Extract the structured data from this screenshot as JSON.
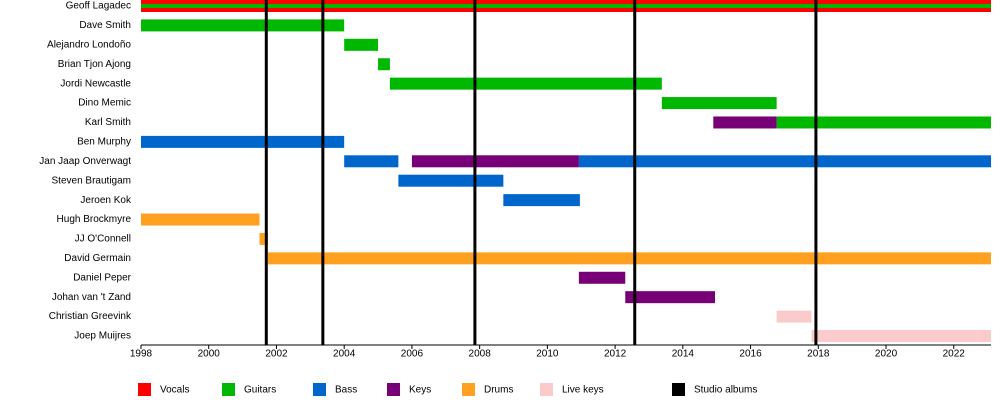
{
  "chart_data": {
    "type": "timeline",
    "categories": [
      "Geoff Lagadec",
      "Dave Smith",
      "Alejandro Londoño",
      "Brian Tjon Ajong",
      "Jordi Newcastle",
      "Dino Memic",
      "Karl Smith",
      "Ben Murphy",
      "Jan Jaap Onverwagt",
      "Steven Brautigam",
      "Jeroen Kok",
      "Hugh Brockmyre",
      "JJ O'Connell",
      "David Germain",
      "Daniel Peper",
      "Johan van 't Zand",
      "Christian Greevink",
      "Joep Muijres"
    ],
    "series": [
      {
        "name": "Vocals",
        "color": "#ff0000",
        "values": [
          [
            [
              1998,
              2023.1
            ]
          ],
          null,
          null,
          null,
          null,
          null,
          null,
          null,
          null,
          null,
          null,
          null,
          null,
          null,
          null,
          null,
          null,
          null
        ]
      },
      {
        "name": "Guitars",
        "color": "#00b800",
        "values": [
          [
            [
              1998,
              2023.1
            ]
          ],
          [
            [
              1998,
              2004
            ]
          ],
          [
            [
              2004,
              2005
            ]
          ],
          [
            [
              2005,
              2005.35
            ]
          ],
          [
            [
              2005.35,
              2013.38
            ]
          ],
          [
            [
              2013.38,
              2016.77
            ]
          ],
          [
            [
              2016.77,
              2023.1
            ]
          ],
          null,
          null,
          null,
          null,
          null,
          null,
          null,
          null,
          null,
          null,
          null
        ]
      },
      {
        "name": "Bass",
        "color": "#0066cc",
        "values": [
          null,
          null,
          null,
          null,
          null,
          null,
          null,
          [
            [
              1998,
              2004
            ]
          ],
          [
            [
              2004,
              2005.6
            ],
            [
              2010.93,
              2023.1
            ]
          ],
          [
            [
              2005.6,
              2008.7
            ]
          ],
          [
            [
              2008.7,
              2010.96
            ]
          ],
          null,
          null,
          null,
          null,
          null,
          null,
          null
        ]
      },
      {
        "name": "Keys",
        "color": "#770077",
        "values": [
          null,
          null,
          null,
          null,
          null,
          null,
          [
            [
              2014.9,
              2016.77
            ]
          ],
          null,
          [
            [
              2006,
              2010.93
            ]
          ],
          null,
          null,
          null,
          null,
          null,
          [
            [
              2010.93,
              2012.3
            ]
          ],
          [
            [
              2012.3,
              2014.95
            ]
          ],
          null,
          null
        ]
      },
      {
        "name": "Drums",
        "color": "#ffa020",
        "values": [
          null,
          null,
          null,
          null,
          null,
          null,
          null,
          null,
          null,
          null,
          null,
          [
            [
              1998,
              2001.5
            ]
          ],
          [
            [
              2001.5,
              2001.75
            ]
          ],
          [
            [
              2001.75,
              2023.1
            ]
          ],
          null,
          null,
          null,
          null
        ]
      },
      {
        "name": "Live keys",
        "color": "#fbcaca",
        "values": [
          null,
          null,
          null,
          null,
          null,
          null,
          null,
          null,
          null,
          null,
          null,
          null,
          null,
          null,
          null,
          null,
          [
            [
              2016.77,
              2017.8
            ]
          ],
          [
            [
              2017.8,
              2023.1
            ]
          ]
        ]
      },
      {
        "name": "Studio albums",
        "color": "#000000",
        "x": [
          2001.7,
          2003.37,
          2007.86,
          2012.58,
          2017.93
        ]
      }
    ],
    "xlim": [
      1998,
      2023.1
    ],
    "xticks": [
      1998,
      2000,
      2002,
      2004,
      2006,
      2008,
      2010,
      2012,
      2014,
      2016,
      2018,
      2020,
      2022
    ]
  }
}
